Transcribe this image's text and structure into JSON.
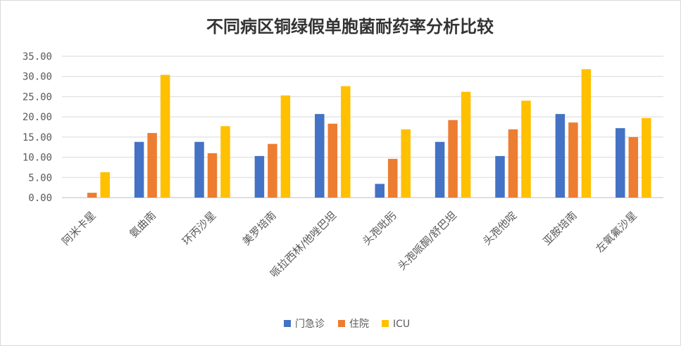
{
  "chart_data": {
    "type": "bar",
    "title": "不同病区铜绿假单胞菌耐药率分析比较",
    "categories": [
      "阿米卡星",
      "氨曲南",
      "环丙沙星",
      "美罗培南",
      "哌拉西林/他唑巴坦",
      "头孢吡肟",
      "头孢哌酮/舒巴坦",
      "头孢他啶",
      "亚胺培南",
      "左氧氟沙星"
    ],
    "series": [
      {
        "name": "门急诊",
        "color": "#4472c4",
        "values": [
          0.0,
          13.8,
          13.8,
          10.3,
          20.7,
          3.4,
          13.8,
          10.3,
          20.7,
          17.2
        ]
      },
      {
        "name": "住院",
        "color": "#ed7d31",
        "values": [
          1.2,
          16.0,
          11.0,
          13.3,
          18.3,
          9.6,
          19.2,
          16.9,
          18.6,
          15.0
        ]
      },
      {
        "name": "ICU",
        "color": "#ffc000",
        "values": [
          6.3,
          30.4,
          17.7,
          25.3,
          27.6,
          16.9,
          26.2,
          24.0,
          31.8,
          19.7
        ]
      }
    ],
    "y_ticks": [
      "0.00",
      "5.00",
      "10.00",
      "15.00",
      "20.00",
      "25.00",
      "30.00",
      "35.00"
    ],
    "ylim": [
      0,
      35
    ],
    "grid": true,
    "legend_position": "bottom",
    "xlabel": "",
    "ylabel": ""
  }
}
